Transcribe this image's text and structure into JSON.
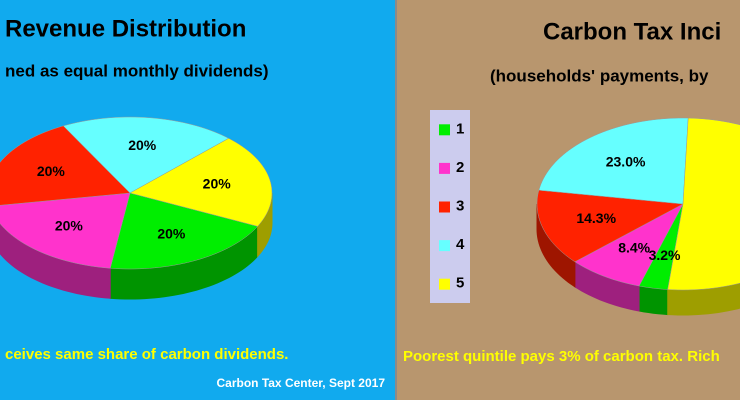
{
  "chart_data": [
    {
      "type": "pie",
      "title": "Revenue Distribution",
      "subtitle": "ned as equal monthly dividends)",
      "values": [
        20,
        20,
        20,
        20,
        20
      ],
      "value_labels": [
        "20%",
        "20%",
        "20%",
        "20%",
        "20%"
      ],
      "colors": [
        "#00ee00",
        "#ff33cc",
        "#ff2200",
        "#66ffff",
        "#ffff00"
      ],
      "annotation": "ceives same share of carbon dividends.",
      "source": "Carbon Tax Center, Sept 2017"
    },
    {
      "type": "pie",
      "title": "Carbon Tax Inci",
      "subtitle": "(households' payments, by",
      "categories": [
        "1",
        "2",
        "3",
        "4",
        "5"
      ],
      "values": [
        3.2,
        8.4,
        14.3,
        23.0,
        51.1
      ],
      "value_labels": [
        "3.2%",
        "8.4%",
        "14.3%",
        "23.0%",
        null
      ],
      "colors": [
        "#00ee00",
        "#ff33cc",
        "#ff2200",
        "#66ffff",
        "#ffff00"
      ],
      "legend": "left",
      "annotation": "Poorest quintile pays 3% of carbon tax. Rich"
    }
  ]
}
